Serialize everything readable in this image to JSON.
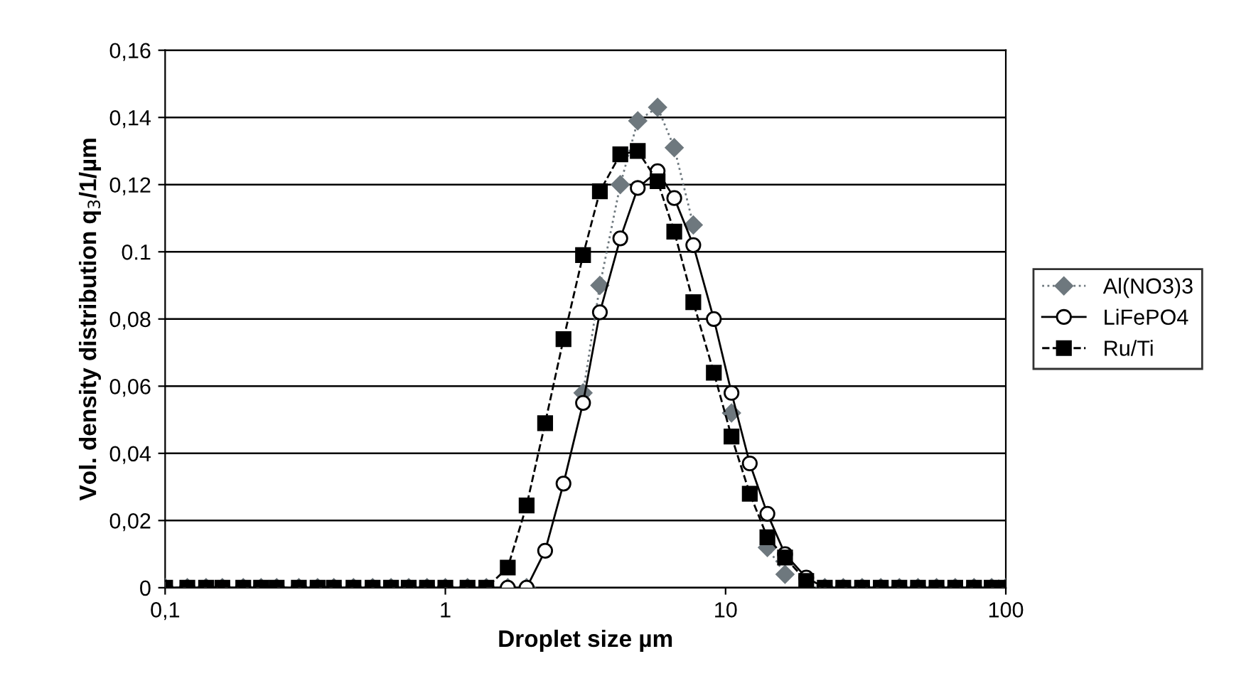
{
  "chart_data": {
    "type": "line",
    "xlabel": "Droplet size µm",
    "ylabel": "Vol. density distribution q$_{3}$/1/µm",
    "log": "x",
    "xlim": [
      0.1,
      100
    ],
    "xticks": [
      {
        "value": 0.1,
        "label": "0,1"
      },
      1,
      10,
      100
    ],
    "ylim": [
      0,
      0.16
    ],
    "yticks": [
      0,
      {
        "value": 0.02,
        "label": "0,02"
      },
      {
        "value": 0.04,
        "label": "0,04"
      },
      {
        "value": 0.06,
        "label": "0,06"
      },
      {
        "value": 0.08,
        "label": "0,08"
      },
      {
        "value": 0.1,
        "label": "0.1"
      },
      {
        "value": 0.12,
        "label": "0,12"
      },
      {
        "value": 0.14,
        "label": "0,14"
      },
      {
        "value": 0.16,
        "label": "0,16"
      }
    ],
    "grid": "y",
    "legend": "right",
    "x": [
      0.1,
      0.12,
      0.14,
      0.16,
      0.19,
      0.22,
      0.25,
      0.3,
      0.35,
      0.4,
      0.47,
      0.55,
      0.64,
      0.74,
      0.86,
      1.0,
      1.2,
      1.4,
      1.67,
      1.95,
      2.27,
      2.64,
      3.1,
      3.56,
      4.21,
      4.86,
      5.72,
      6.56,
      7.67,
      9.08,
      10.5,
      12.2,
      14.1,
      16.3,
      19.4,
      22.6,
      26.3,
      30.7,
      35.8,
      41.7,
      48.6,
      56.6,
      66,
      77,
      89,
      100
    ],
    "series": [
      {
        "name": "Al(NO3)3",
        "color": "#6e787e",
        "marker": "diamond",
        "line_style": "dotted",
        "values": [
          0,
          0,
          0,
          0,
          0,
          0,
          0,
          0,
          0,
          0,
          0,
          0,
          0,
          0,
          0,
          0,
          0,
          0,
          0,
          0,
          null,
          null,
          0.058,
          0.09,
          0.12,
          0.139,
          0.143,
          0.131,
          0.108,
          null,
          0.052,
          null,
          0.012,
          0.004,
          null,
          0,
          0,
          0,
          0,
          0,
          0,
          0,
          0,
          0,
          0,
          0
        ]
      },
      {
        "name": "LiFePO4",
        "color": "#ffffff",
        "marker": "circle",
        "line_style": "solid",
        "values": [
          0,
          0,
          0,
          0,
          0,
          0,
          0,
          0,
          0,
          0,
          0,
          0,
          0,
          0,
          0,
          0,
          0,
          0,
          0,
          0,
          0.011,
          0.031,
          0.055,
          0.082,
          0.104,
          0.119,
          0.124,
          0.116,
          0.102,
          0.08,
          0.058,
          0.037,
          0.022,
          0.01,
          0.003,
          0,
          0,
          0,
          0,
          0,
          0,
          0,
          0,
          0,
          0,
          0
        ]
      },
      {
        "name": "Ru/Ti",
        "color": "#000000",
        "marker": "square",
        "line_style": "dashed",
        "values": [
          0,
          0,
          0,
          0,
          0,
          0,
          0,
          0,
          0,
          0,
          0,
          0,
          0,
          0,
          0,
          0,
          0,
          0,
          0.006,
          0.0245,
          0.049,
          0.074,
          0.099,
          0.118,
          0.129,
          0.13,
          0.121,
          0.106,
          0.085,
          0.064,
          0.045,
          0.028,
          0.015,
          0.009,
          0.002,
          0,
          0,
          0,
          0,
          0,
          0,
          0,
          0,
          0,
          0,
          0
        ]
      }
    ]
  }
}
